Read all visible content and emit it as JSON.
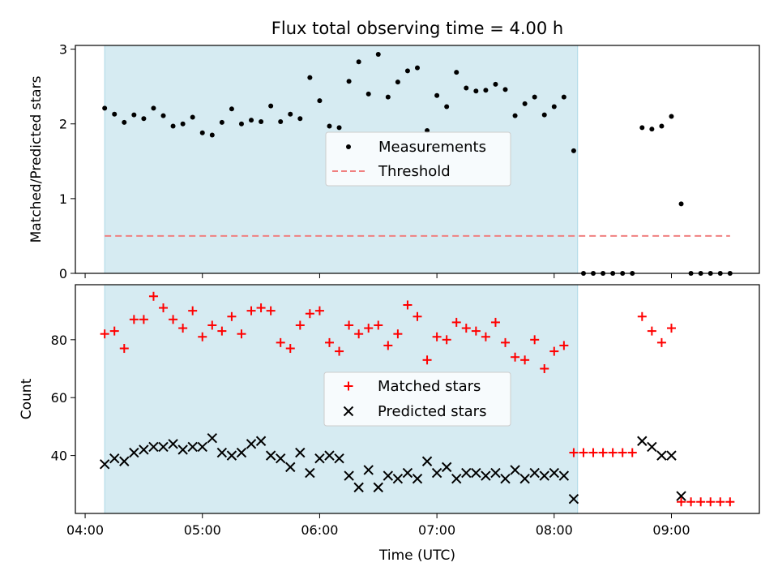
{
  "chart_data": [
    {
      "type": "scatter",
      "title": "Flux total observing time = 4.00 h",
      "ylabel": "Matched/Predicted stars",
      "xlabel": "",
      "xlim": [
        "03:55",
        "09:45"
      ],
      "ylim": [
        0,
        3.05
      ],
      "y_ticks": [
        "0",
        "1",
        "2",
        "3"
      ],
      "shaded_span": [
        "04:10",
        "08:12"
      ],
      "legend": {
        "placement": "center",
        "entries": [
          "Measurements",
          "Threshold"
        ]
      },
      "threshold": {
        "name": "Threshold",
        "y": 0.5,
        "x_start": "04:10",
        "x_end": "09:30",
        "color": "#f08080"
      },
      "series": [
        {
          "name": "Measurements",
          "color": "#000000",
          "x": [
            "04:10",
            "04:15",
            "04:20",
            "04:25",
            "04:30",
            "04:35",
            "04:40",
            "04:45",
            "04:50",
            "04:55",
            "05:00",
            "05:05",
            "05:10",
            "05:15",
            "05:20",
            "05:25",
            "05:30",
            "05:35",
            "05:40",
            "05:45",
            "05:50",
            "05:55",
            "06:00",
            "06:05",
            "06:10",
            "06:15",
            "06:20",
            "06:25",
            "06:30",
            "06:35",
            "06:40",
            "06:45",
            "06:50",
            "06:55",
            "07:00",
            "07:05",
            "07:10",
            "07:15",
            "07:20",
            "07:25",
            "07:30",
            "07:35",
            "07:40",
            "07:45",
            "07:50",
            "07:55",
            "08:00",
            "08:05",
            "08:10",
            "08:15",
            "08:20",
            "08:25",
            "08:30",
            "08:35",
            "08:40",
            "08:45",
            "08:50",
            "08:55",
            "09:00",
            "09:05",
            "09:10",
            "09:15",
            "09:20",
            "09:25",
            "09:30"
          ],
          "y": [
            2.21,
            2.13,
            2.02,
            2.12,
            2.07,
            2.21,
            2.11,
            1.97,
            2.0,
            2.09,
            1.88,
            1.85,
            2.02,
            2.2,
            2.0,
            2.05,
            2.03,
            2.24,
            2.03,
            2.13,
            2.07,
            2.62,
            2.31,
            1.97,
            1.95,
            2.57,
            2.83,
            2.4,
            2.93,
            2.36,
            2.56,
            2.71,
            2.75,
            1.91,
            2.38,
            2.23,
            2.69,
            2.48,
            2.44,
            2.45,
            2.53,
            2.46,
            2.11,
            2.27,
            2.36,
            2.12,
            2.23,
            2.36,
            1.64,
            0,
            0,
            0,
            0,
            0,
            0,
            1.95,
            1.93,
            1.97,
            2.1,
            0.93,
            0,
            0,
            0,
            0,
            0
          ]
        }
      ]
    },
    {
      "type": "scatter",
      "title": "",
      "ylabel": "Count",
      "xlabel": "Time (UTC)",
      "xlim": [
        "03:55",
        "09:45"
      ],
      "ylim": [
        20,
        99
      ],
      "x_ticks": [
        "04:00",
        "05:00",
        "06:00",
        "07:00",
        "08:00",
        "09:00"
      ],
      "y_ticks": [
        "40",
        "60",
        "80"
      ],
      "shaded_span": [
        "04:10",
        "08:12"
      ],
      "legend": {
        "placement": "center",
        "entries": [
          "Matched stars",
          "Predicted stars"
        ]
      },
      "series": [
        {
          "name": "Matched stars",
          "color": "#ff0000",
          "marker": "plus",
          "x": [
            "04:10",
            "04:15",
            "04:20",
            "04:25",
            "04:30",
            "04:35",
            "04:40",
            "04:45",
            "04:50",
            "04:55",
            "05:00",
            "05:05",
            "05:10",
            "05:15",
            "05:20",
            "05:25",
            "05:30",
            "05:35",
            "05:40",
            "05:45",
            "05:50",
            "05:55",
            "06:00",
            "06:05",
            "06:10",
            "06:15",
            "06:20",
            "06:25",
            "06:30",
            "06:35",
            "06:40",
            "06:45",
            "06:50",
            "06:55",
            "07:00",
            "07:05",
            "07:10",
            "07:15",
            "07:20",
            "07:25",
            "07:30",
            "07:35",
            "07:40",
            "07:45",
            "07:50",
            "07:55",
            "08:00",
            "08:05",
            "08:10",
            "08:15",
            "08:20",
            "08:25",
            "08:30",
            "08:35",
            "08:40",
            "08:45",
            "08:50",
            "08:55",
            "09:00",
            "09:05",
            "09:10",
            "09:15",
            "09:20",
            "09:25",
            "09:30"
          ],
          "y": [
            82,
            83,
            77,
            87,
            87,
            95,
            91,
            87,
            84,
            90,
            81,
            85,
            83,
            88,
            82,
            90,
            91,
            90,
            79,
            77,
            85,
            89,
            90,
            79,
            76,
            85,
            82,
            84,
            85,
            78,
            82,
            92,
            88,
            73,
            81,
            80,
            86,
            84,
            83,
            81,
            86,
            79,
            74,
            73,
            80,
            70,
            76,
            78,
            41,
            41,
            41,
            41,
            41,
            41,
            41,
            88,
            83,
            79,
            84,
            24,
            24,
            24,
            24,
            24,
            24
          ]
        },
        {
          "name": "Predicted stars",
          "color": "#000000",
          "marker": "x",
          "x": [
            "04:10",
            "04:15",
            "04:20",
            "04:25",
            "04:30",
            "04:35",
            "04:40",
            "04:45",
            "04:50",
            "04:55",
            "05:00",
            "05:05",
            "05:10",
            "05:15",
            "05:20",
            "05:25",
            "05:30",
            "05:35",
            "05:40",
            "05:45",
            "05:50",
            "05:55",
            "06:00",
            "06:05",
            "06:10",
            "06:15",
            "06:20",
            "06:25",
            "06:30",
            "06:35",
            "06:40",
            "06:45",
            "06:50",
            "06:55",
            "07:00",
            "07:05",
            "07:10",
            "07:15",
            "07:20",
            "07:25",
            "07:30",
            "07:35",
            "07:40",
            "07:45",
            "07:50",
            "07:55",
            "08:00",
            "08:05",
            "08:10",
            "08:45",
            "08:50",
            "08:55",
            "09:00",
            "09:05"
          ],
          "y": [
            37,
            39,
            38,
            41,
            42,
            43,
            43,
            44,
            42,
            43,
            43,
            46,
            41,
            40,
            41,
            44,
            45,
            40,
            39,
            36,
            41,
            34,
            39,
            40,
            39,
            33,
            29,
            35,
            29,
            33,
            32,
            34,
            32,
            38,
            34,
            36,
            32,
            34,
            34,
            33,
            34,
            32,
            35,
            32,
            34,
            33,
            34,
            33,
            25,
            45,
            43,
            40,
            40,
            26
          ]
        }
      ]
    }
  ]
}
